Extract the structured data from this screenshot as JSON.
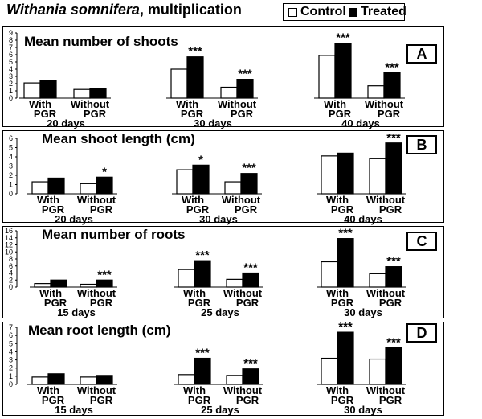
{
  "figure_title_italic": "Withania somnifera",
  "figure_title_rest": ", multiplication",
  "legend": {
    "control_label": "Control",
    "treated_label": "Treated",
    "control_color": "#ffffff",
    "treated_color": "#000000"
  },
  "chart_data": [
    {
      "type": "bar",
      "panel_label": "A",
      "title": "Mean number of shoots",
      "ylim": [
        0,
        9
      ],
      "yticks": [
        0,
        1,
        2,
        3,
        4,
        5,
        6,
        7,
        8,
        9
      ],
      "groups": [
        {
          "x_top": "With",
          "x_bottom": "PGR",
          "day_label": "20 days",
          "control": 2.1,
          "treated": 2.4,
          "significance": ""
        },
        {
          "x_top": "Without",
          "x_bottom": "PGR",
          "day_label": "",
          "control": 1.2,
          "treated": 1.3,
          "significance": ""
        },
        {
          "x_top": "With",
          "x_bottom": "PGR",
          "day_label": "30 days",
          "control": 4.0,
          "treated": 5.7,
          "significance": "***"
        },
        {
          "x_top": "Without",
          "x_bottom": "PGR",
          "day_label": "",
          "control": 1.5,
          "treated": 2.6,
          "significance": "***"
        },
        {
          "x_top": "With",
          "x_bottom": "PGR",
          "day_label": "40 days",
          "control": 5.9,
          "treated": 7.6,
          "significance": "***"
        },
        {
          "x_top": "Without",
          "x_bottom": "PGR",
          "day_label": "",
          "control": 1.7,
          "treated": 3.5,
          "significance": "***"
        }
      ]
    },
    {
      "type": "bar",
      "panel_label": "B",
      "title": "Mean shoot length (cm)",
      "ylim": [
        0,
        6
      ],
      "yticks": [
        0,
        1,
        2,
        3,
        4,
        5,
        6
      ],
      "groups": [
        {
          "x_top": "With",
          "x_bottom": "PGR",
          "day_label": "20 days",
          "control": 1.3,
          "treated": 1.7,
          "significance": ""
        },
        {
          "x_top": "Without",
          "x_bottom": "PGR",
          "day_label": "",
          "control": 1.1,
          "treated": 1.8,
          "significance": "*"
        },
        {
          "x_top": "With",
          "x_bottom": "PGR",
          "day_label": "30 days",
          "control": 2.6,
          "treated": 3.1,
          "significance": "*"
        },
        {
          "x_top": "Without",
          "x_bottom": "PGR",
          "day_label": "",
          "control": 1.3,
          "treated": 2.2,
          "significance": "***"
        },
        {
          "x_top": "With",
          "x_bottom": "PGR",
          "day_label": "40 days",
          "control": 4.1,
          "treated": 4.4,
          "significance": ""
        },
        {
          "x_top": "Without",
          "x_bottom": "PGR",
          "day_label": "",
          "control": 3.8,
          "treated": 5.5,
          "significance": "***"
        }
      ]
    },
    {
      "type": "bar",
      "panel_label": "C",
      "title": "Mean number of roots",
      "ylim": [
        0,
        16
      ],
      "yticks": [
        0,
        2,
        4,
        6,
        8,
        10,
        12,
        14,
        16
      ],
      "groups": [
        {
          "x_top": "With",
          "x_bottom": "PGR",
          "day_label": "15 days",
          "control": 1.0,
          "treated": 2.0,
          "significance": ""
        },
        {
          "x_top": "Without",
          "x_bottom": "PGR",
          "day_label": "",
          "control": 0.8,
          "treated": 2.0,
          "significance": "***"
        },
        {
          "x_top": "With",
          "x_bottom": "PGR",
          "day_label": "25 days",
          "control": 5.0,
          "treated": 7.5,
          "significance": "***"
        },
        {
          "x_top": "Without",
          "x_bottom": "PGR",
          "day_label": "",
          "control": 2.2,
          "treated": 4.0,
          "significance": "***"
        },
        {
          "x_top": "With",
          "x_bottom": "PGR",
          "day_label": "30 days",
          "control": 7.2,
          "treated": 13.8,
          "significance": "***"
        },
        {
          "x_top": "Without",
          "x_bottom": "PGR",
          "day_label": "",
          "control": 3.8,
          "treated": 5.8,
          "significance": "***"
        }
      ]
    },
    {
      "type": "bar",
      "panel_label": "D",
      "title": "Mean root length (cm)",
      "ylim": [
        0,
        7
      ],
      "yticks": [
        0,
        1,
        2,
        3,
        4,
        5,
        6,
        7
      ],
      "groups": [
        {
          "x_top": "With",
          "x_bottom": "PGR",
          "day_label": "15 days",
          "control": 0.9,
          "treated": 1.3,
          "significance": ""
        },
        {
          "x_top": "Without",
          "x_bottom": "PGR",
          "day_label": "",
          "control": 0.9,
          "treated": 1.1,
          "significance": ""
        },
        {
          "x_top": "With",
          "x_bottom": "PGR",
          "day_label": "25 days",
          "control": 1.2,
          "treated": 3.2,
          "significance": "***"
        },
        {
          "x_top": "Without",
          "x_bottom": "PGR",
          "day_label": "",
          "control": 1.1,
          "treated": 1.9,
          "significance": "***"
        },
        {
          "x_top": "With",
          "x_bottom": "PGR",
          "day_label": "30 days",
          "control": 3.2,
          "treated": 6.4,
          "significance": "***"
        },
        {
          "x_top": "Without",
          "x_bottom": "PGR",
          "day_label": "",
          "control": 3.1,
          "treated": 4.5,
          "significance": "***"
        }
      ]
    }
  ]
}
